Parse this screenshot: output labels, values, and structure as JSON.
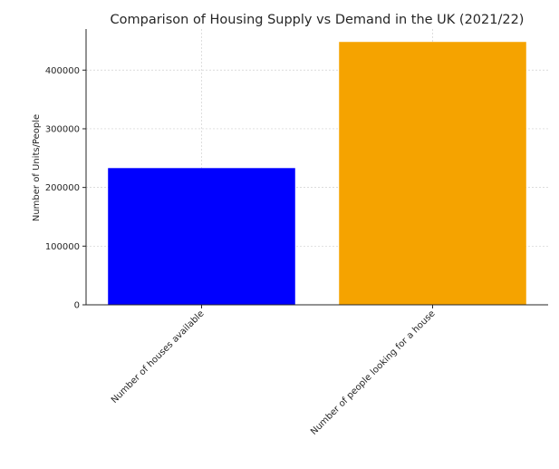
{
  "chart_data": {
    "type": "bar",
    "title": "Comparison of Housing Supply vs Demand in the UK (2021/22)",
    "xlabel": "",
    "ylabel": "Number of Units/People",
    "categories": [
      "Number of houses available",
      "Number of people looking for a house"
    ],
    "values": [
      233000,
      448000
    ],
    "colors": [
      "#0000ff",
      "#f5a300"
    ],
    "ylim": [
      0,
      470000
    ],
    "yticks": [
      0,
      100000,
      200000,
      300000,
      400000
    ],
    "ytick_labels": [
      "0",
      "100000",
      "200000",
      "300000",
      "400000"
    ],
    "grid": true,
    "legend": "none"
  }
}
